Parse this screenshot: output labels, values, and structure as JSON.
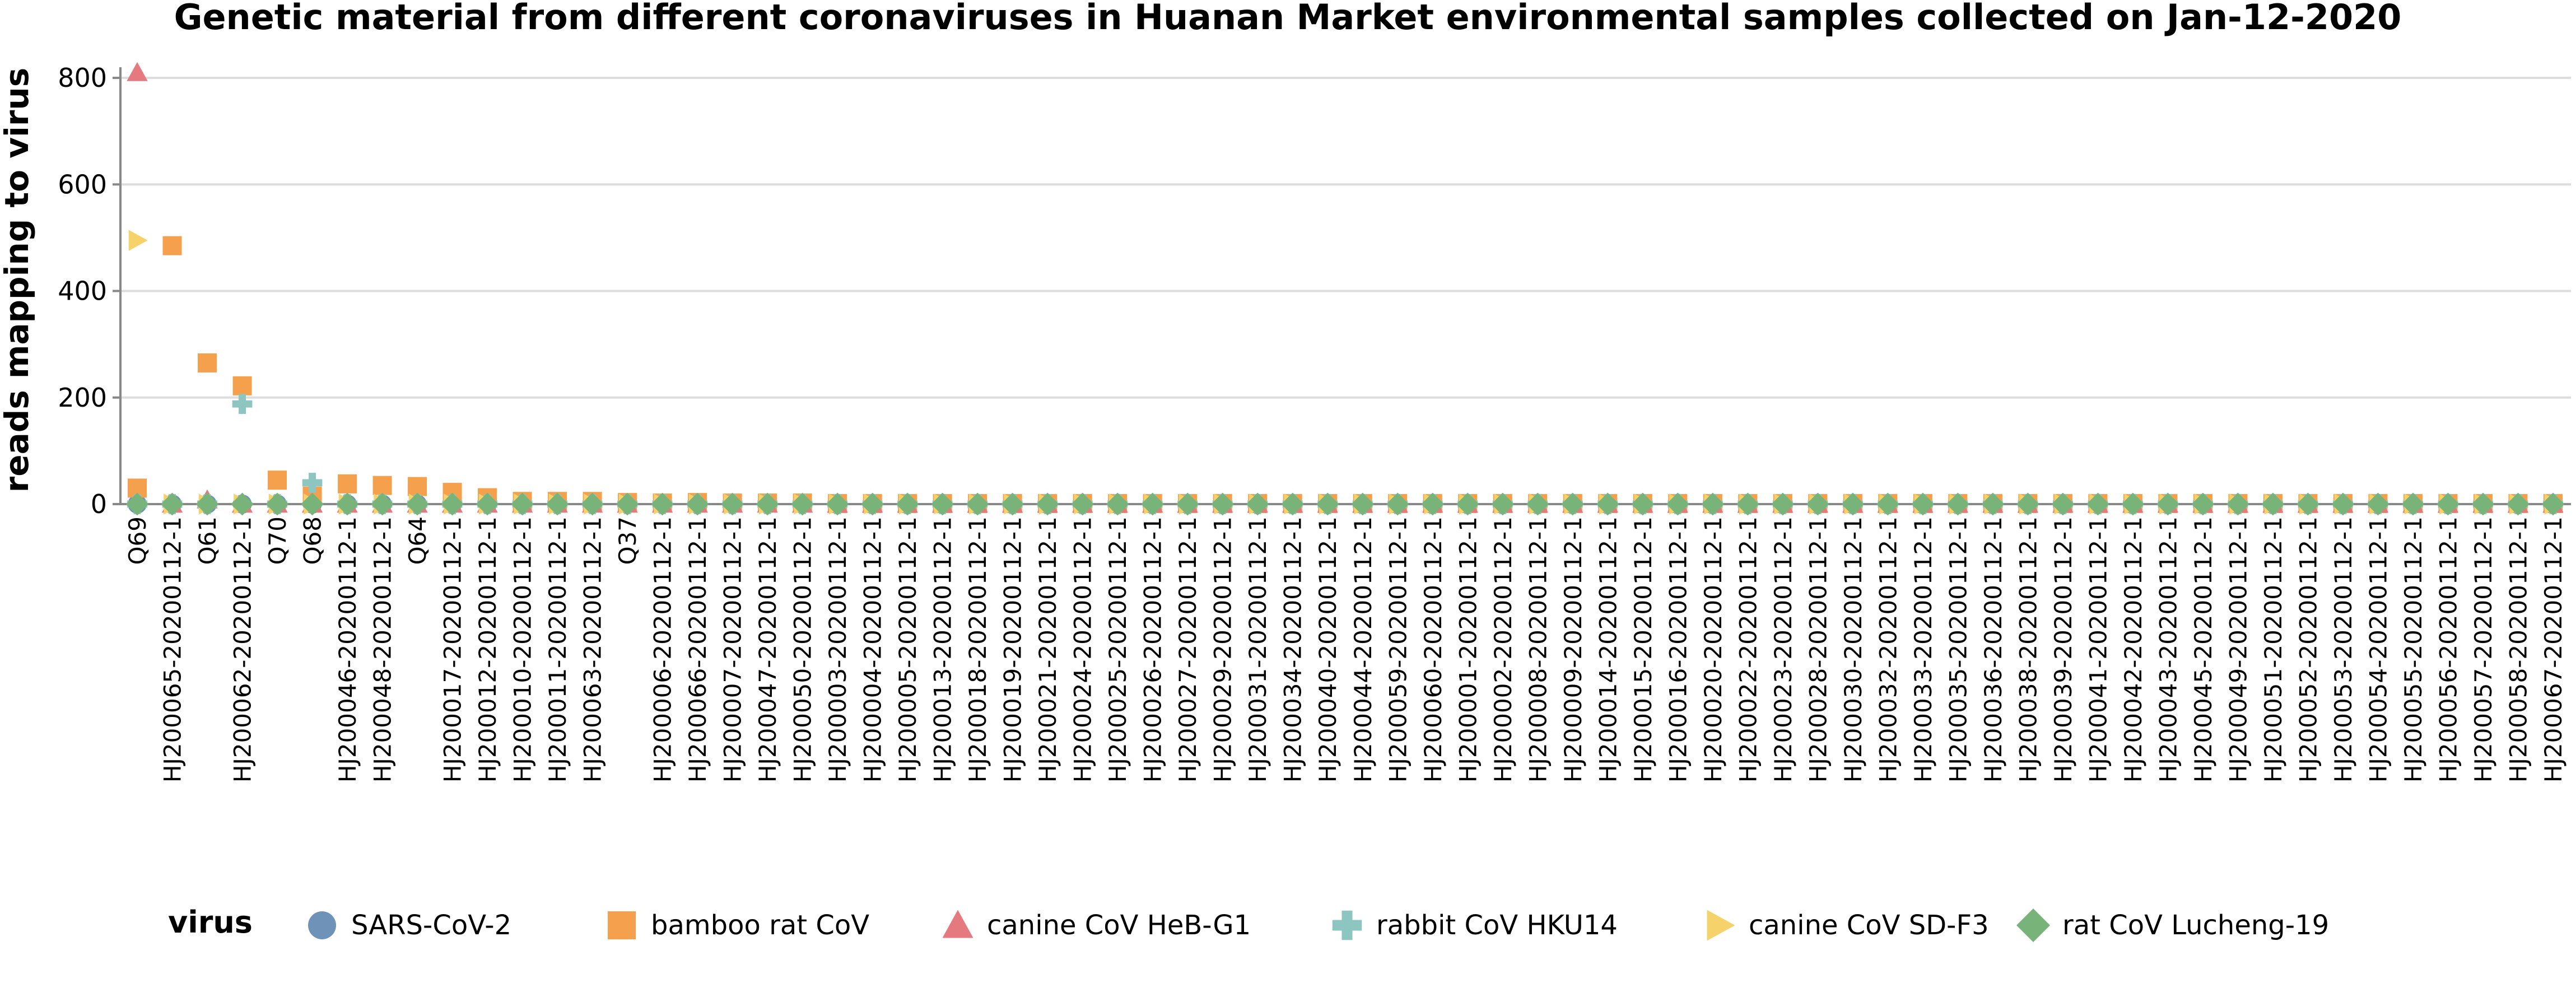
{
  "chart_data": {
    "type": "scatter",
    "title": "Genetic material from different coronaviruses in Huanan Market environmental samples collected on Jan-12-2020",
    "xlabel": "",
    "ylabel": "reads mapping to virus",
    "ylim": [
      0,
      820
    ],
    "yticks": [
      0,
      200,
      400,
      600,
      800
    ],
    "grid": true,
    "legend_title": "virus",
    "legend_position": "bottom",
    "categories": [
      "Q69",
      "HJ200065-20200112-1",
      "Q61",
      "HJ200062-20200112-1",
      "Q70",
      "Q68",
      "HJ200046-20200112-1",
      "HJ200048-20200112-1",
      "Q64",
      "HJ200017-20200112-1",
      "HJ200012-20200112-1",
      "HJ200010-20200112-1",
      "HJ200011-20200112-1",
      "HJ200063-20200112-1",
      "Q37",
      "HJ200006-20200112-1",
      "HJ200066-20200112-1",
      "HJ200007-20200112-1",
      "HJ200047-20200112-1",
      "HJ200050-20200112-1",
      "HJ200003-20200112-1",
      "HJ200004-20200112-1",
      "HJ200005-20200112-1",
      "HJ200013-20200112-1",
      "HJ200018-20200112-1",
      "HJ200019-20200112-1",
      "HJ200021-20200112-1",
      "HJ200024-20200112-1",
      "HJ200025-20200112-1",
      "HJ200026-20200112-1",
      "HJ200027-20200112-1",
      "HJ200029-20200112-1",
      "HJ200031-20200112-1",
      "HJ200034-20200112-1",
      "HJ200040-20200112-1",
      "HJ200044-20200112-1",
      "HJ200059-20200112-1",
      "HJ200060-20200112-1",
      "HJ200001-20200112-1",
      "HJ200002-20200112-1",
      "HJ200008-20200112-1",
      "HJ200009-20200112-1",
      "HJ200014-20200112-1",
      "HJ200015-20200112-1",
      "HJ200016-20200112-1",
      "HJ200020-20200112-1",
      "HJ200022-20200112-1",
      "HJ200023-20200112-1",
      "HJ200028-20200112-1",
      "HJ200030-20200112-1",
      "HJ200032-20200112-1",
      "HJ200033-20200112-1",
      "HJ200035-20200112-1",
      "HJ200036-20200112-1",
      "HJ200038-20200112-1",
      "HJ200039-20200112-1",
      "HJ200041-20200112-1",
      "HJ200042-20200112-1",
      "HJ200043-20200112-1",
      "HJ200045-20200112-1",
      "HJ200049-20200112-1",
      "HJ200051-20200112-1",
      "HJ200052-20200112-1",
      "HJ200053-20200112-1",
      "HJ200054-20200112-1",
      "HJ200055-20200112-1",
      "HJ200056-20200112-1",
      "HJ200057-20200112-1",
      "HJ200058-20200112-1",
      "HJ200067-20200112-1"
    ],
    "series": [
      {
        "name": "SARS-CoV-2",
        "color": "#6f93b8",
        "marker": "circle",
        "values": [
          0,
          0,
          0,
          0,
          0,
          0,
          0,
          0,
          0,
          0,
          0,
          0,
          0,
          0,
          0,
          0,
          0,
          0,
          0,
          0,
          0,
          0,
          0,
          0,
          0,
          0,
          0,
          0,
          0,
          0,
          0,
          0,
          0,
          0,
          0,
          0,
          0,
          0,
          0,
          0,
          0,
          0,
          0,
          0,
          0,
          0,
          0,
          0,
          0,
          0,
          0,
          0,
          0,
          0,
          0,
          0,
          0,
          0,
          0,
          0,
          0,
          0,
          0,
          0,
          0,
          0,
          0,
          0,
          0,
          0
        ]
      },
      {
        "name": "bamboo rat CoV",
        "color": "#f5a04c",
        "marker": "square",
        "values": [
          30,
          485,
          265,
          222,
          45,
          15,
          38,
          35,
          33,
          22,
          12,
          5,
          5,
          5,
          3,
          2,
          3,
          2,
          2,
          2,
          1,
          1,
          1,
          1,
          1,
          1,
          1,
          1,
          1,
          1,
          1,
          1,
          1,
          1,
          1,
          1,
          1,
          1,
          1,
          1,
          1,
          1,
          1,
          1,
          1,
          1,
          1,
          1,
          1,
          1,
          1,
          1,
          1,
          1,
          1,
          1,
          1,
          1,
          1,
          1,
          1,
          1,
          1,
          1,
          1,
          1,
          1,
          1,
          1,
          1
        ]
      },
      {
        "name": "canine CoV HeB-G1",
        "color": "#e47a80",
        "marker": "triangle-up",
        "values": [
          810,
          0,
          8,
          0,
          0,
          0,
          0,
          0,
          0,
          0,
          0,
          0,
          0,
          0,
          0,
          0,
          0,
          0,
          0,
          0,
          0,
          0,
          0,
          0,
          0,
          0,
          0,
          0,
          0,
          0,
          0,
          0,
          0,
          0,
          0,
          0,
          0,
          0,
          0,
          0,
          0,
          0,
          0,
          0,
          0,
          0,
          0,
          0,
          0,
          0,
          0,
          0,
          0,
          0,
          0,
          0,
          0,
          0,
          0,
          0,
          0,
          0,
          0,
          0,
          0,
          0,
          0,
          0,
          0,
          0
        ]
      },
      {
        "name": "rabbit CoV HKU14",
        "color": "#8dc5c1",
        "marker": "cross",
        "values": [
          0,
          0,
          0,
          188,
          0,
          40,
          0,
          0,
          0,
          0,
          0,
          0,
          0,
          0,
          0,
          0,
          0,
          0,
          0,
          0,
          0,
          0,
          0,
          0,
          0,
          0,
          0,
          0,
          0,
          0,
          0,
          0,
          0,
          0,
          0,
          0,
          0,
          0,
          0,
          0,
          0,
          0,
          0,
          0,
          0,
          0,
          0,
          0,
          0,
          0,
          0,
          0,
          0,
          0,
          0,
          0,
          0,
          0,
          0,
          0,
          0,
          0,
          0,
          0,
          0,
          0,
          0,
          0,
          0,
          0
        ]
      },
      {
        "name": "canine CoV SD-F3",
        "color": "#f5d36a",
        "marker": "triangle-right",
        "values": [
          495,
          0,
          0,
          0,
          0,
          0,
          0,
          0,
          0,
          0,
          0,
          0,
          0,
          0,
          0,
          0,
          0,
          0,
          0,
          0,
          0,
          0,
          0,
          0,
          0,
          0,
          0,
          0,
          0,
          0,
          0,
          0,
          0,
          0,
          0,
          0,
          0,
          0,
          0,
          0,
          0,
          0,
          0,
          0,
          0,
          0,
          0,
          0,
          0,
          0,
          0,
          0,
          0,
          0,
          0,
          0,
          0,
          0,
          0,
          0,
          0,
          0,
          0,
          0,
          0,
          0,
          0,
          0,
          0,
          0
        ]
      },
      {
        "name": "rat CoV Lucheng-19",
        "color": "#78b379",
        "marker": "diamond",
        "values": [
          0,
          0,
          0,
          0,
          0,
          0,
          0,
          0,
          0,
          0,
          0,
          0,
          0,
          0,
          0,
          0,
          0,
          0,
          0,
          0,
          0,
          0,
          0,
          0,
          0,
          0,
          0,
          0,
          0,
          0,
          0,
          0,
          0,
          0,
          0,
          0,
          0,
          0,
          0,
          0,
          0,
          0,
          0,
          0,
          0,
          0,
          0,
          0,
          0,
          0,
          0,
          0,
          0,
          0,
          0,
          0,
          0,
          0,
          0,
          0,
          0,
          0,
          0,
          0,
          0,
          0,
          0,
          0,
          0,
          0
        ]
      }
    ]
  }
}
